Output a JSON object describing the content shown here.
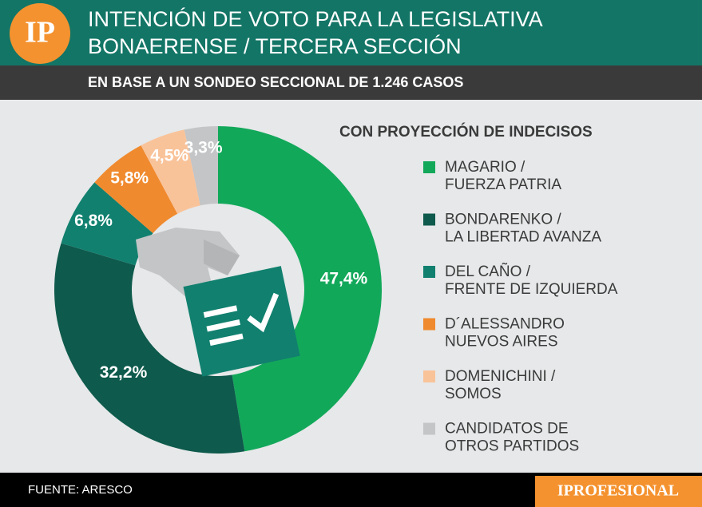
{
  "chart_data": {
    "type": "pie",
    "logo": "IP",
    "title": [
      "INTENCIÓN DE VOTO PARA LA LEGISLATIVA",
      "BONAERENSE / TERCERA SECCIÓN"
    ],
    "subtitle": "EN BASE A UN SONDEO SECCIONAL DE 1.246 CASOS",
    "legend_title": "CON PROYECCIÓN DE INDECISOS",
    "categories": [
      [
        "MAGARIO /",
        "FUERZA PATRIA"
      ],
      [
        "BONDARENKO /",
        "LA LIBERTAD AVANZA"
      ],
      [
        "DEL CAÑO /",
        "FRENTE DE IZQUIERDA"
      ],
      [
        "D´ALESSANDRO",
        "NUEVOS AIRES"
      ],
      [
        "DOMENICHINI /",
        "SOMOS"
      ],
      [
        "CANDIDATOS DE",
        "OTROS PARTIDOS"
      ]
    ],
    "values": [
      47.4,
      32.2,
      6.8,
      5.8,
      4.5,
      3.3
    ],
    "value_labels": [
      "47,4%",
      "32,2%",
      "6,8%",
      "5,8%",
      "4,5%",
      "3,3%"
    ],
    "colors": [
      "#12a85a",
      "#0e5a4c",
      "#11806f",
      "#f08a2e",
      "#f9c39a",
      "#c3c5c6"
    ],
    "source": "FUENTE: ARESCO",
    "brand": "IPROFESIONAL"
  }
}
